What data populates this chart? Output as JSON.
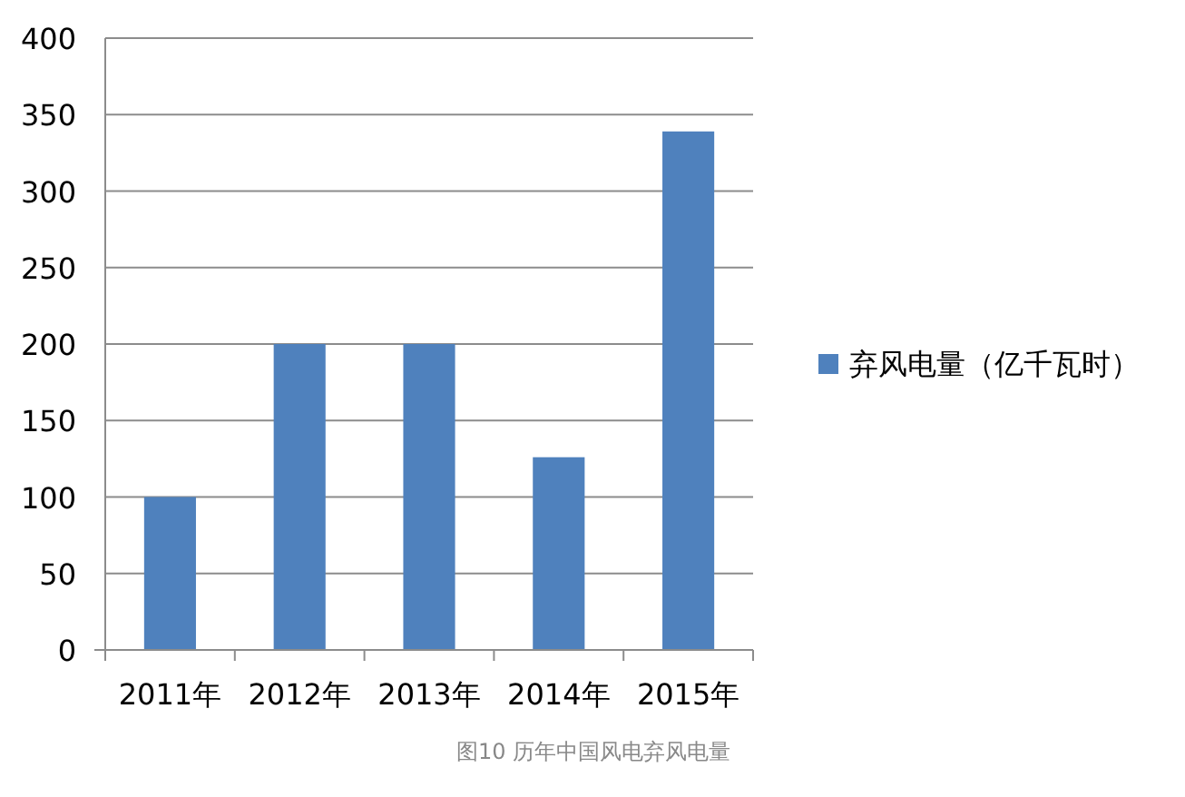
{
  "chart_data": {
    "type": "bar",
    "categories": [
      "2011年",
      "2012年",
      "2013年",
      "2014年",
      "2015年"
    ],
    "series": [
      {
        "name": "弃风电量（亿千瓦时）",
        "color": "#4f81bd",
        "values": [
          100,
          200,
          200,
          126,
          339
        ]
      }
    ],
    "ylim": [
      0,
      400
    ],
    "yticks": [
      0,
      50,
      100,
      150,
      200,
      250,
      300,
      350,
      400
    ],
    "grid": "y",
    "legend": "right",
    "annotations": [
      "图10 历年中国风电弃风电量"
    ]
  }
}
